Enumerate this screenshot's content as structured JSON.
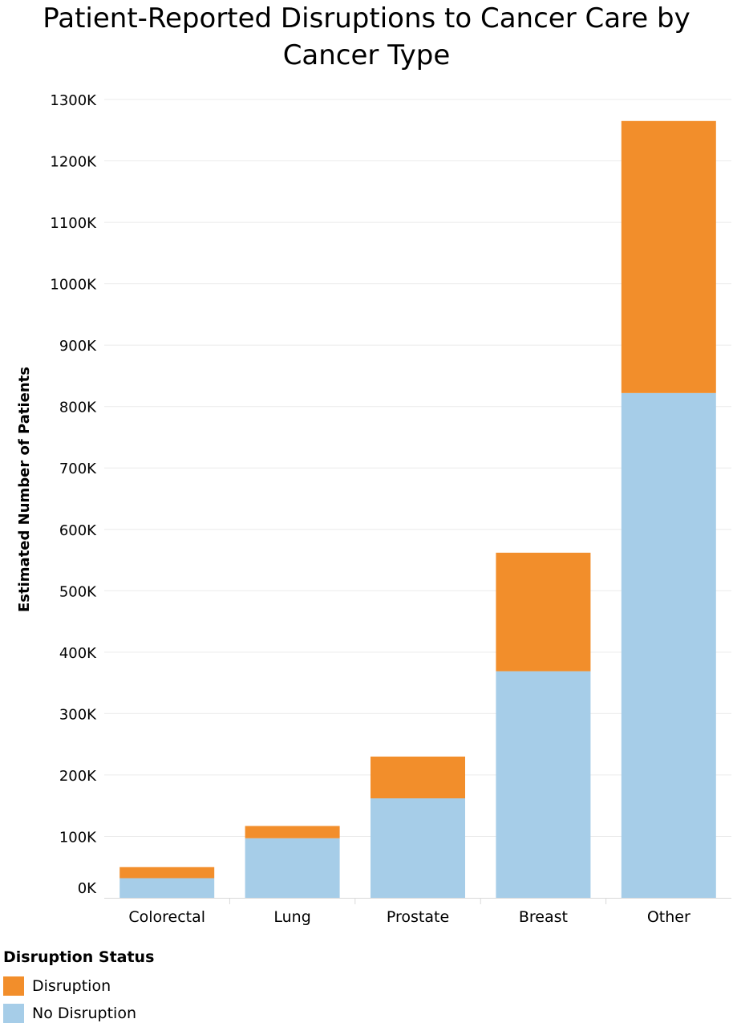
{
  "chart_data": {
    "type": "bar",
    "stacked": true,
    "title": "Patient-Reported Disruptions to Cancer Care by Cancer Type",
    "xlabel": "",
    "ylabel": "Estimated Number of Patients",
    "categories": [
      "Colorectal",
      "Lung",
      "Prostate",
      "Breast",
      "Other"
    ],
    "series": [
      {
        "name": "No Disruption",
        "color": "#a6cde8",
        "values": [
          32,
          97,
          162,
          369,
          822
        ]
      },
      {
        "name": "Disruption",
        "color": "#f28e2b",
        "values": [
          18,
          20,
          68,
          193,
          443
        ]
      }
    ],
    "ylim": [
      0,
      1300
    ],
    "yticks": [
      0,
      100,
      200,
      300,
      400,
      500,
      600,
      700,
      800,
      900,
      1000,
      1100,
      1200,
      1300
    ],
    "ytick_labels": [
      "0K",
      "100K",
      "200K",
      "300K",
      "400K",
      "500K",
      "600K",
      "700K",
      "800K",
      "900K",
      "1000K",
      "1100K",
      "1200K",
      "1300K"
    ],
    "grid": true,
    "legend": {
      "title": "Disruption Status",
      "position": "bottom-left",
      "items": [
        {
          "label": "Disruption",
          "color": "#f28e2b"
        },
        {
          "label": "No Disruption",
          "color": "#a6cde8"
        }
      ]
    }
  }
}
